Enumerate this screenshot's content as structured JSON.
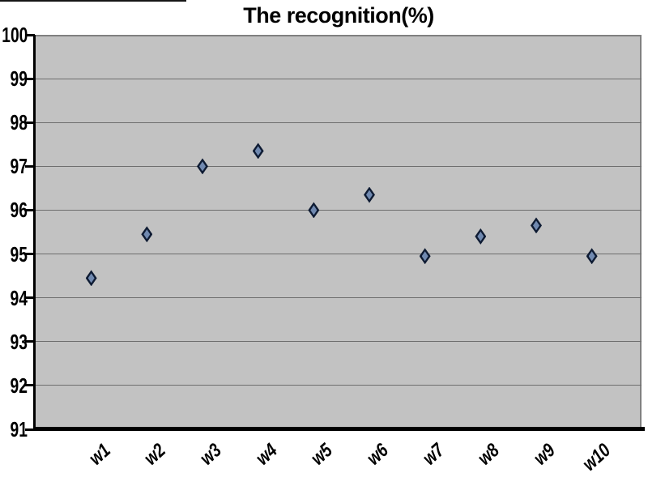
{
  "chart_data": {
    "type": "scatter",
    "title": "The recognition(%)",
    "categories": [
      "w1",
      "w2",
      "w3",
      "w4",
      "w5",
      "w6",
      "w7",
      "w8",
      "w9",
      "w10"
    ],
    "values": [
      94.45,
      95.45,
      97.0,
      97.35,
      96.0,
      96.35,
      94.95,
      95.4,
      95.65,
      94.95
    ],
    "xlabel": "",
    "ylabel": "",
    "ylim": [
      91,
      100
    ],
    "yticks": [
      91,
      92,
      93,
      94,
      95,
      96,
      97,
      98,
      99,
      100
    ],
    "grid": "horizontal",
    "legend": "none",
    "marker": "diamond"
  },
  "colors": {
    "background": "#ffffff",
    "plot_background": "#c2c2c2",
    "gridline": "#6e6e6e",
    "axis_line": "#000000",
    "plot_border": "#808080",
    "marker_border": "#0e1b33",
    "marker_fill": "#7089b0",
    "text": "#000000"
  }
}
